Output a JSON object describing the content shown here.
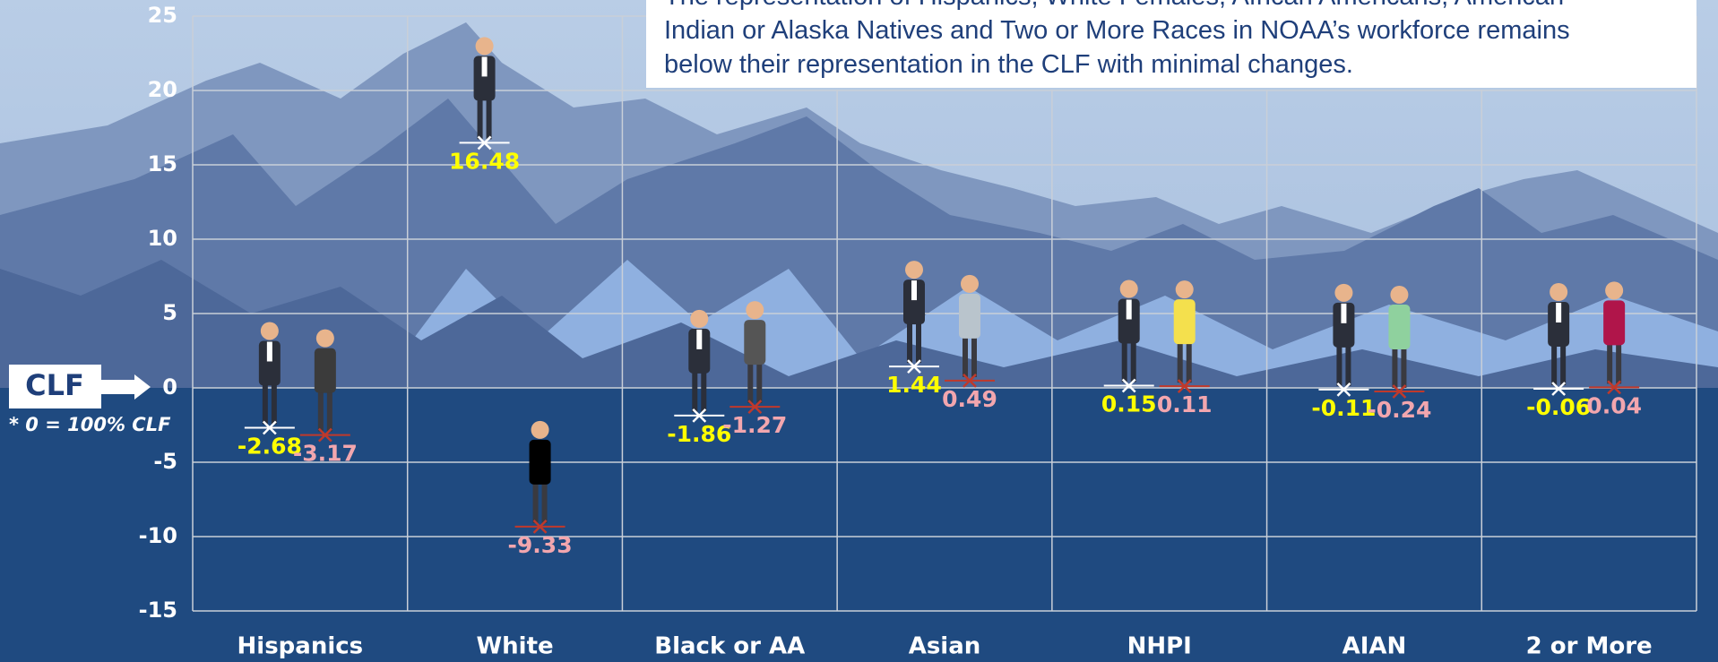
{
  "chart_data": {
    "type": "dot",
    "title_lines": [
      "The representation of Hispanics, White Females, African Americans, American",
      "Indian or Alaska Natives and Two or More Races in NOAA’s workforce remains",
      "below their representation in the CLF with minimal changes."
    ],
    "reference_label": "CLF",
    "reference_note": "* 0 = 100% CLF",
    "categories": [
      "Hispanics",
      "White",
      "Black or AA",
      "Asian",
      "NHPI",
      "AIAN",
      "2 or More"
    ],
    "series": [
      {
        "color": "#ffff00",
        "values": [
          -2.68,
          16.48,
          -1.86,
          1.44,
          0.15,
          -0.11,
          -0.06
        ]
      },
      {
        "color": "#f2a6ae",
        "values": [
          -3.17,
          -9.33,
          -1.27,
          0.49,
          0.11,
          -0.24,
          0.04
        ]
      }
    ],
    "ylim": [
      -15,
      25
    ],
    "yticks": [
      -15,
      -10,
      -5,
      0,
      5,
      10,
      15,
      20,
      25
    ],
    "grid": true
  }
}
